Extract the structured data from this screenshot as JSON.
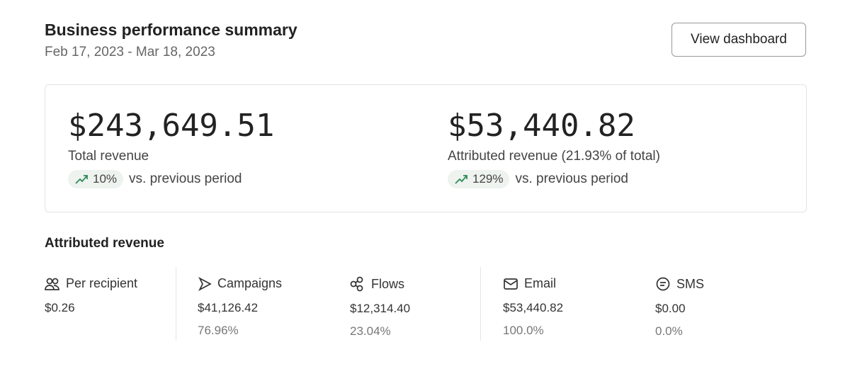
{
  "header": {
    "title": "Business performance summary",
    "date_range": "Feb 17, 2023 - Mar 18, 2023",
    "view_dashboard": "View dashboard"
  },
  "metrics": [
    {
      "value": "$243,649.51",
      "label": "Total revenue",
      "change": "10%",
      "comparison": "vs. previous period"
    },
    {
      "value": "$53,440.82",
      "label": "Attributed revenue (21.93% of total)",
      "change": "129%",
      "comparison": "vs. previous period"
    }
  ],
  "attributed": {
    "title": "Attributed revenue",
    "columns": [
      {
        "label": "Per recipient",
        "value": "$0.26",
        "icon": "users-icon"
      },
      {
        "label": "Campaigns",
        "value": "$41,126.42",
        "percent": "76.96%",
        "icon": "send-icon"
      },
      {
        "label": "Flows",
        "value": "$12,314.40",
        "percent": "23.04%",
        "icon": "flows-icon"
      },
      {
        "label": "Email",
        "value": "$53,440.82",
        "percent": "100.0%",
        "icon": "mail-icon"
      },
      {
        "label": "SMS",
        "value": "$0.00",
        "percent": "0.0%",
        "icon": "sms-icon"
      }
    ]
  },
  "colors": {
    "trend_green": "#2e8b57"
  }
}
